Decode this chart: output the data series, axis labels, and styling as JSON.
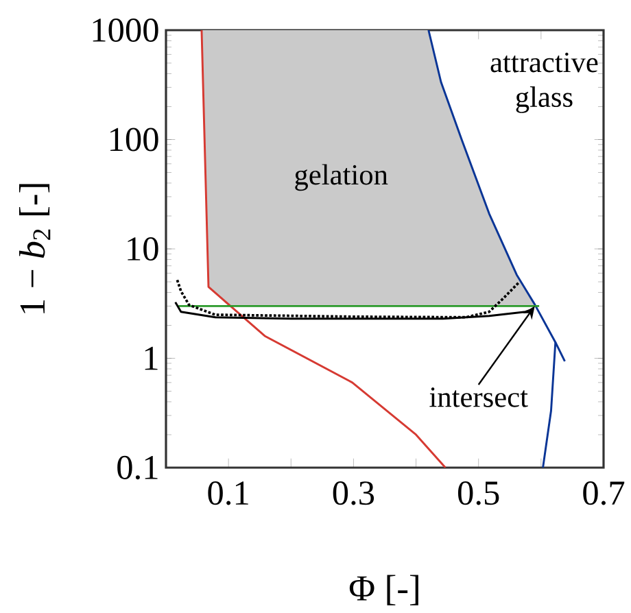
{
  "chart_data": {
    "type": "line",
    "xlabel": "Φ [-]",
    "ylabel": "1 − *b*$_{2}$ [-]",
    "xlim": [
      0,
      0.7
    ],
    "ylim": [
      0.1,
      1000
    ],
    "log": "y",
    "xticks": [
      {
        "value": 0.1,
        "label": "0.1"
      },
      {
        "value": 0.2,
        "label": null
      },
      {
        "value": 0.3,
        "label": "0.3"
      },
      {
        "value": 0.4,
        "label": null
      },
      {
        "value": 0.5,
        "label": "0.5"
      },
      {
        "value": 0.6,
        "label": null
      },
      {
        "value": 0.7,
        "label": "0.7"
      }
    ],
    "yticks": [
      0.1,
      1,
      10,
      100,
      1000
    ],
    "series": [
      {
        "type": "area",
        "color": "#cacaca",
        "x": [
          0.057,
          0.068,
          0.1,
          0.59,
          0.561,
          0.517,
          0.473,
          0.44,
          0.42
        ],
        "values": [
          1000,
          4.5,
          3.0,
          3.0,
          5.8,
          21,
          100,
          335,
          1000
        ]
      },
      {
        "color": "#d63a32",
        "x": [
          0.057,
          0.068,
          0.158,
          0.298,
          0.4,
          0.447
        ],
        "values": [
          1000,
          4.5,
          1.6,
          0.6,
          0.2,
          0.1
        ]
      },
      {
        "color": "#0a3596",
        "x": [
          0.42,
          0.44,
          0.473,
          0.517,
          0.561,
          0.59,
          0.623,
          0.638
        ],
        "values": [
          1000,
          335,
          100,
          21,
          5.8,
          3.1,
          1.4,
          0.94
        ]
      },
      {
        "color": "#0a3596",
        "x": [
          0.623,
          0.616,
          0.603
        ],
        "values": [
          1.4,
          0.33,
          0.1
        ]
      },
      {
        "color": "#2a9a2a",
        "x": [
          0.02,
          0.597
        ],
        "values": [
          3.0,
          3.0
        ]
      },
      {
        "color": "#000000",
        "line_style": "solid",
        "x": [
          0.015,
          0.024,
          0.079,
          0.2,
          0.443,
          0.517,
          0.575,
          0.586
        ],
        "values": [
          3.25,
          2.66,
          2.37,
          2.3,
          2.3,
          2.44,
          2.66,
          2.8
        ]
      },
      {
        "color": "#000000",
        "line_style": "dotted",
        "x": [
          0.018,
          0.024,
          0.037,
          0.079,
          0.3,
          0.48,
          0.517,
          0.539,
          0.564
        ],
        "values": [
          5.2,
          4.1,
          3.07,
          2.5,
          2.4,
          2.37,
          2.66,
          3.5,
          4.9
        ]
      }
    ],
    "annotations": [
      "gelation",
      "attractive glass",
      {
        "text": "intersect",
        "x": 0.59,
        "y": 3.0
      }
    ]
  }
}
